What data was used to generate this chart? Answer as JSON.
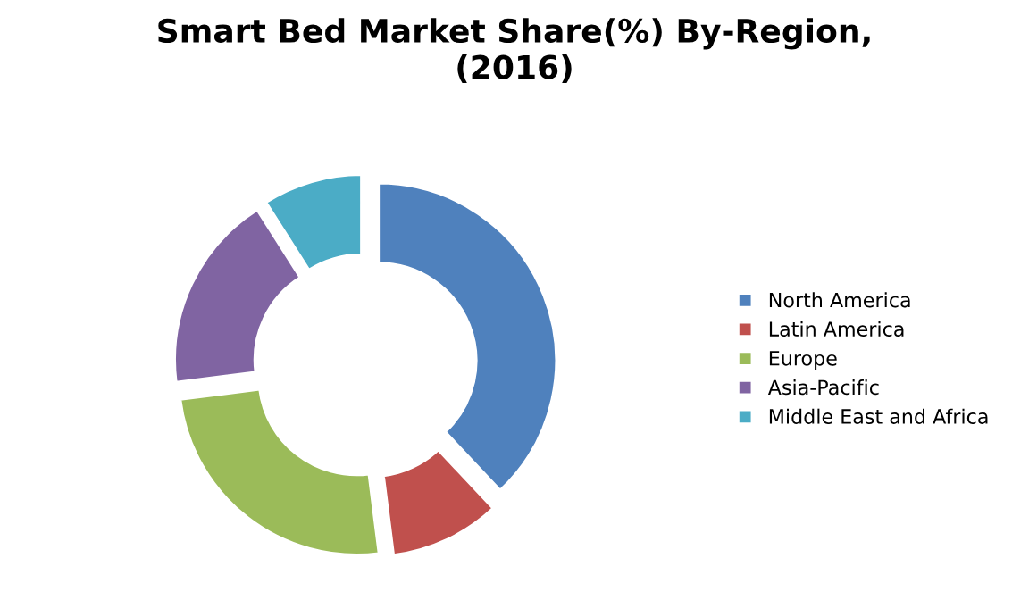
{
  "chart_data": {
    "type": "donut",
    "title": "Smart Bed Market Share(%) By-Region,\n(2016)",
    "categories": [
      "North America",
      "Latin America",
      "Europe",
      "Asia-Pacific",
      "Middle East and Africa"
    ],
    "values": [
      38,
      10,
      25,
      18,
      9
    ],
    "colors": [
      "#4f81bd",
      "#c0504d",
      "#9bbb59",
      "#8064a2",
      "#4bacc6"
    ],
    "legend": "right"
  }
}
